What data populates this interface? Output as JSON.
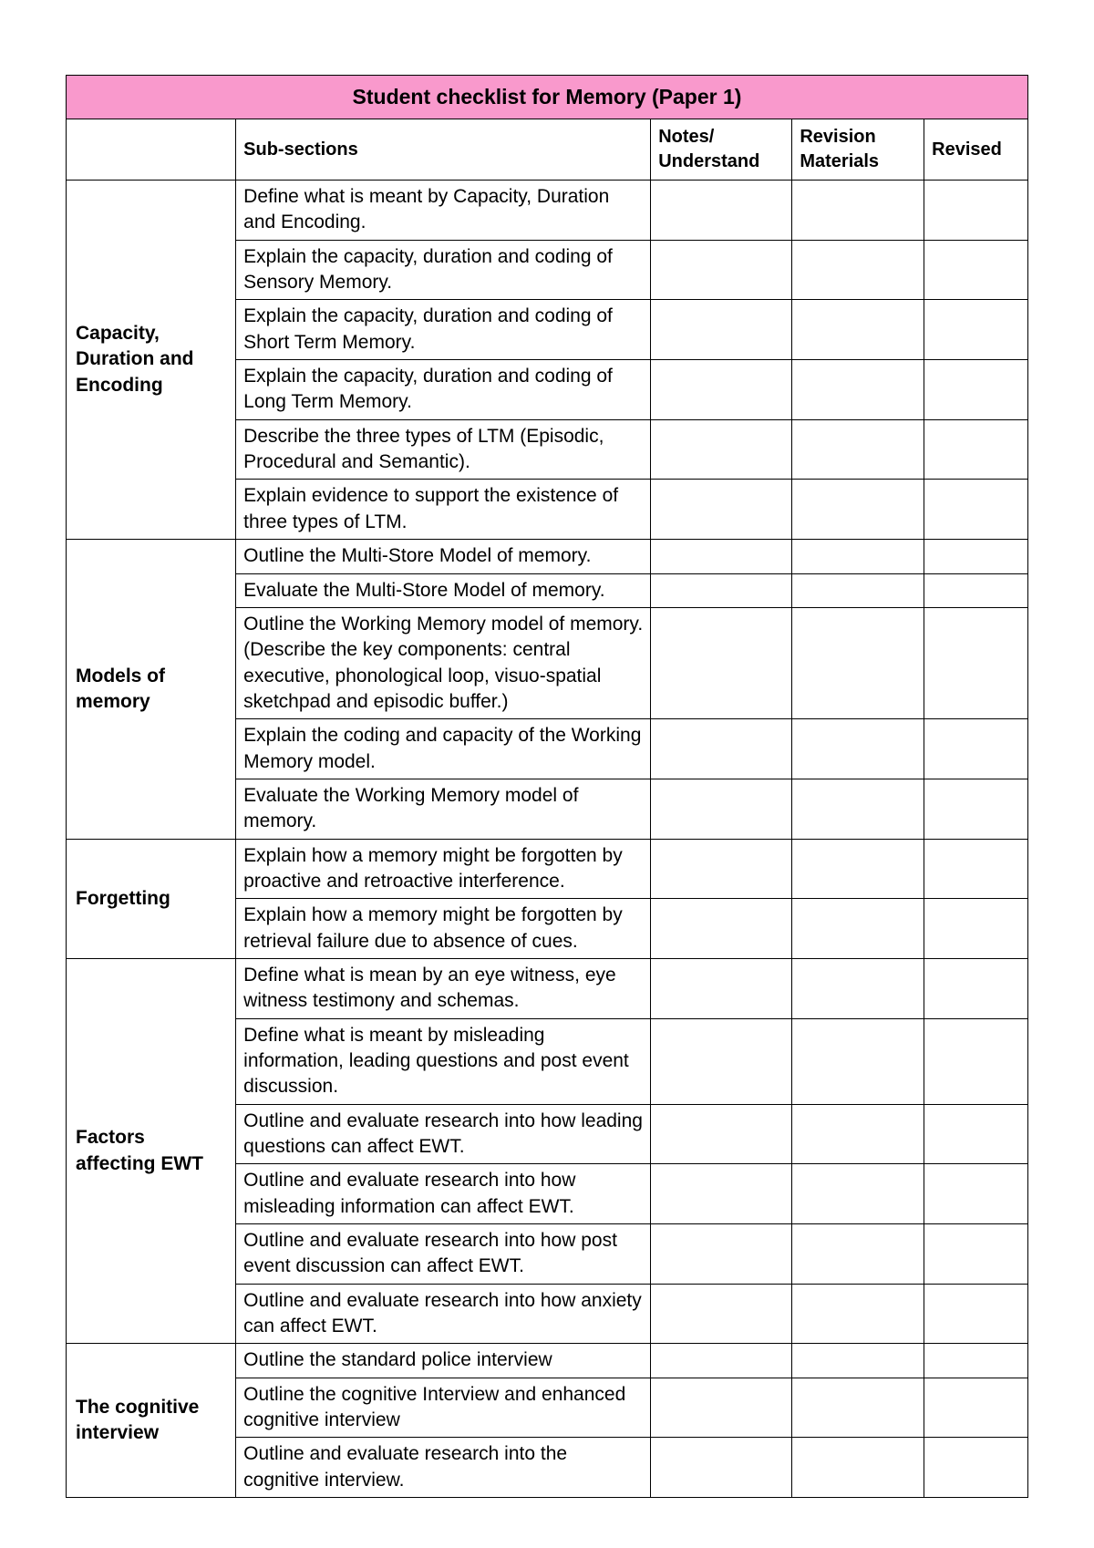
{
  "title": "Student checklist for Memory (Paper 1)",
  "colors": {
    "header_bg": "#f999cc",
    "border": "#000000",
    "text": "#000000",
    "page_bg": "#ffffff"
  },
  "columns": {
    "section": "",
    "subsections": "Sub-sections",
    "notes": "Notes/ Understand",
    "revision": "Revision Materials",
    "revised": "Revised"
  },
  "sections": [
    {
      "name": "Capacity, Duration and Encoding",
      "items": [
        "Define what is meant by Capacity, Duration and Encoding.",
        "Explain the capacity, duration and coding of Sensory Memory.",
        "Explain the capacity, duration and coding of Short Term Memory.",
        "Explain the capacity, duration and coding of Long Term Memory.",
        "Describe the three types of LTM (Episodic, Procedural and Semantic).",
        "Explain evidence to support the existence of three types of LTM."
      ]
    },
    {
      "name": "Models of memory",
      "items": [
        "Outline the Multi-Store Model of memory.",
        "Evaluate the Multi-Store Model of memory.",
        "Outline the Working Memory model of memory. (Describe the key components: central executive, phonological loop, visuo-spatial sketchpad and episodic buffer.)",
        "Explain the coding and capacity of the Working Memory model.",
        "Evaluate the Working Memory model of memory."
      ]
    },
    {
      "name": "Forgetting",
      "items": [
        "Explain how a memory might be forgotten by proactive and retroactive interference.",
        "Explain how a memory might be forgotten by retrieval failure due to absence of cues."
      ]
    },
    {
      "name": "Factors affecting EWT",
      "items": [
        "Define what is mean by an eye witness, eye witness testimony and schemas.",
        "Define what is meant by misleading information, leading questions and post event discussion.",
        "Outline and evaluate research into how leading questions can affect EWT.",
        "Outline and evaluate research into how misleading information can affect EWT.",
        "Outline and evaluate research into how post event discussion can affect EWT.",
        "Outline and evaluate research into how anxiety can affect EWT."
      ]
    },
    {
      "name": "The cognitive interview",
      "items": [
        "Outline the standard police interview",
        "Outline the cognitive Interview and enhanced cognitive interview",
        "Outline and evaluate research into the cognitive interview."
      ]
    }
  ]
}
